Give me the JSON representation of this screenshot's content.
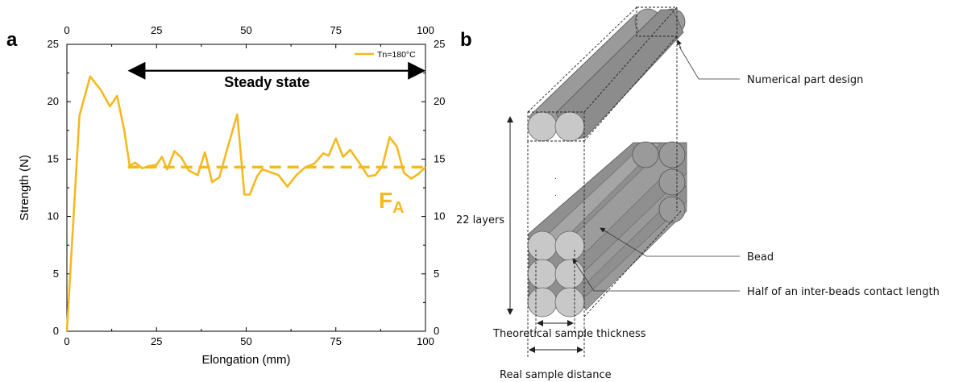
{
  "panel_a_letter": "a",
  "panel_b_letter": "b",
  "chart_data": {
    "type": "line",
    "title": "",
    "xlabel": "Elongation (mm)",
    "ylabel": "Strength (N)",
    "xlim": [
      0,
      100
    ],
    "ylim": [
      0,
      25
    ],
    "xticks": [
      0,
      25,
      50,
      75,
      100
    ],
    "yticks": [
      0,
      5,
      10,
      15,
      20,
      25
    ],
    "top_axis_ticks": [
      0,
      25,
      50,
      75,
      100
    ],
    "right_axis_ticks": [
      0,
      5,
      10,
      15,
      20,
      25
    ],
    "grid": false,
    "legend_position": "top-right",
    "series": [
      {
        "name": "Tn=180°C",
        "color": "#F5B920",
        "x": [
          0,
          3.5,
          6.5,
          9.5,
          12,
          14,
          16,
          17.5,
          19,
          21,
          23,
          25,
          26.5,
          28,
          30,
          32,
          34,
          36.5,
          38.5,
          40.5,
          42.5,
          45,
          47.5,
          49.5,
          51,
          53,
          54.5,
          56.5,
          59,
          61.5,
          64,
          66.5,
          69,
          71.5,
          73,
          75,
          77,
          79,
          81.5,
          84,
          86,
          88,
          90,
          92,
          94,
          96,
          98,
          100
        ],
        "y": [
          0,
          18.8,
          22.2,
          21,
          19.6,
          20.5,
          17.5,
          14.4,
          14.7,
          14.2,
          14.4,
          14.5,
          15.2,
          14.1,
          15.7,
          15.1,
          14,
          13.6,
          15.6,
          13,
          13.4,
          16.2,
          18.9,
          11.9,
          11.9,
          13.5,
          14.1,
          13.9,
          13.6,
          12.6,
          13.6,
          14.3,
          14.6,
          15.5,
          15.3,
          16.8,
          15.2,
          15.8,
          14.7,
          13.5,
          13.6,
          14.4,
          16.9,
          16.1,
          13.8,
          13.3,
          13.7,
          14.3
        ]
      }
    ],
    "reference_line": {
      "value": 14.3,
      "x_range": [
        17,
        100
      ],
      "color": "#F5B920",
      "style": "dashed"
    },
    "annotations": {
      "steady_state_label": "Steady state",
      "steady_state_range": [
        17,
        100
      ],
      "steady_state_y": 22.7,
      "fa_main": "F",
      "fa_sub": "A"
    }
  },
  "diagram": {
    "numerical_part_design": "Numerical part design",
    "bead": "Bead",
    "half_contact": "Half of an inter-beads contact length",
    "layers": "22 layers",
    "theoretical_thickness": "Theoretical sample thickness",
    "real_distance": "Real sample distance",
    "dots": ". . ."
  },
  "colors": {
    "accent": "#F5B920",
    "bead_face": "#C8C8C8",
    "bead_body": "#8F8F8F"
  }
}
